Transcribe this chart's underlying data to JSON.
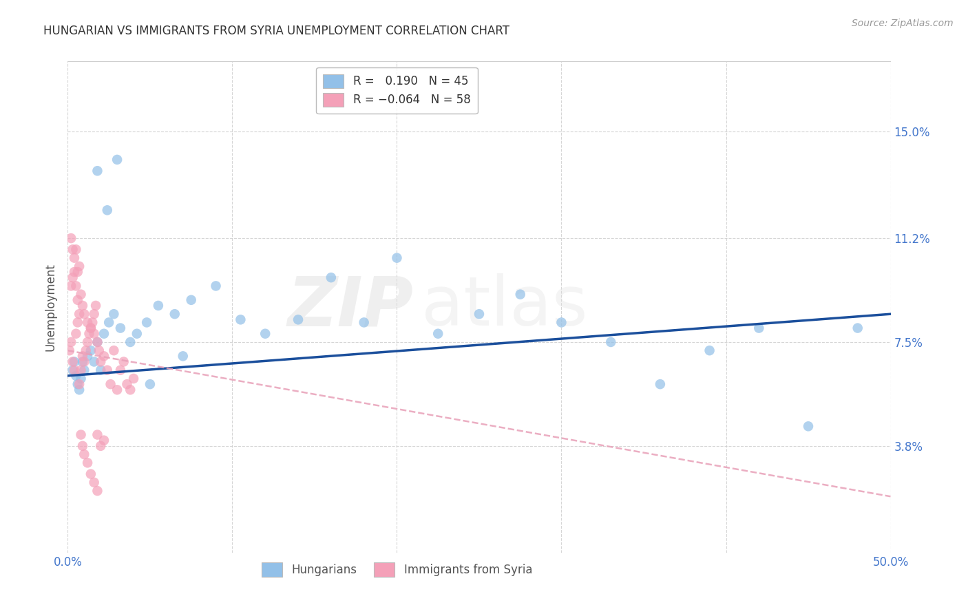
{
  "title": "HUNGARIAN VS IMMIGRANTS FROM SYRIA UNEMPLOYMENT CORRELATION CHART",
  "source": "Source: ZipAtlas.com",
  "ylabel": "Unemployment",
  "xlim": [
    0.0,
    0.5
  ],
  "ylim": [
    0.0,
    0.175
  ],
  "ytick_positions": [
    0.038,
    0.075,
    0.112,
    0.15
  ],
  "ytick_labels": [
    "3.8%",
    "7.5%",
    "11.2%",
    "15.0%"
  ],
  "blue_color": "#92C0E8",
  "pink_color": "#F4A0B8",
  "blue_line_color": "#1B4F9C",
  "pink_line_color": "#E8A0B8",
  "watermark_zip": "ZIP",
  "watermark_atlas": "atlas",
  "background_color": "#FFFFFF",
  "hun_r": 0.19,
  "hun_n": 45,
  "syr_r": -0.064,
  "syr_n": 58,
  "hungarian_x": [
    0.003,
    0.004,
    0.005,
    0.006,
    0.007,
    0.008,
    0.009,
    0.01,
    0.012,
    0.014,
    0.016,
    0.018,
    0.02,
    0.022,
    0.025,
    0.028,
    0.032,
    0.038,
    0.042,
    0.048,
    0.055,
    0.065,
    0.075,
    0.09,
    0.105,
    0.12,
    0.14,
    0.16,
    0.18,
    0.2,
    0.225,
    0.25,
    0.275,
    0.3,
    0.33,
    0.36,
    0.39,
    0.42,
    0.45,
    0.48,
    0.018,
    0.024,
    0.03,
    0.05,
    0.07
  ],
  "hungarian_y": [
    0.065,
    0.068,
    0.063,
    0.06,
    0.058,
    0.062,
    0.068,
    0.065,
    0.07,
    0.072,
    0.068,
    0.075,
    0.065,
    0.078,
    0.082,
    0.085,
    0.08,
    0.075,
    0.078,
    0.082,
    0.088,
    0.085,
    0.09,
    0.095,
    0.083,
    0.078,
    0.083,
    0.098,
    0.082,
    0.105,
    0.078,
    0.085,
    0.092,
    0.082,
    0.075,
    0.06,
    0.072,
    0.08,
    0.045,
    0.08,
    0.136,
    0.122,
    0.14,
    0.06,
    0.07
  ],
  "syria_x": [
    0.001,
    0.002,
    0.003,
    0.004,
    0.005,
    0.006,
    0.007,
    0.008,
    0.009,
    0.01,
    0.011,
    0.012,
    0.013,
    0.014,
    0.015,
    0.016,
    0.017,
    0.018,
    0.019,
    0.02,
    0.022,
    0.024,
    0.026,
    0.028,
    0.03,
    0.032,
    0.034,
    0.036,
    0.038,
    0.04,
    0.002,
    0.003,
    0.004,
    0.005,
    0.006,
    0.007,
    0.008,
    0.009,
    0.01,
    0.012,
    0.014,
    0.016,
    0.018,
    0.02,
    0.022,
    0.002,
    0.003,
    0.004,
    0.005,
    0.006,
    0.007,
    0.008,
    0.009,
    0.01,
    0.012,
    0.014,
    0.016,
    0.018
  ],
  "syria_y": [
    0.072,
    0.075,
    0.068,
    0.065,
    0.078,
    0.082,
    0.06,
    0.065,
    0.07,
    0.068,
    0.072,
    0.075,
    0.078,
    0.08,
    0.082,
    0.085,
    0.088,
    0.075,
    0.072,
    0.068,
    0.07,
    0.065,
    0.06,
    0.072,
    0.058,
    0.065,
    0.068,
    0.06,
    0.058,
    0.062,
    0.095,
    0.098,
    0.1,
    0.095,
    0.09,
    0.085,
    0.092,
    0.088,
    0.085,
    0.082,
    0.08,
    0.078,
    0.042,
    0.038,
    0.04,
    0.112,
    0.108,
    0.105,
    0.108,
    0.1,
    0.102,
    0.042,
    0.038,
    0.035,
    0.032,
    0.028,
    0.025,
    0.022
  ]
}
